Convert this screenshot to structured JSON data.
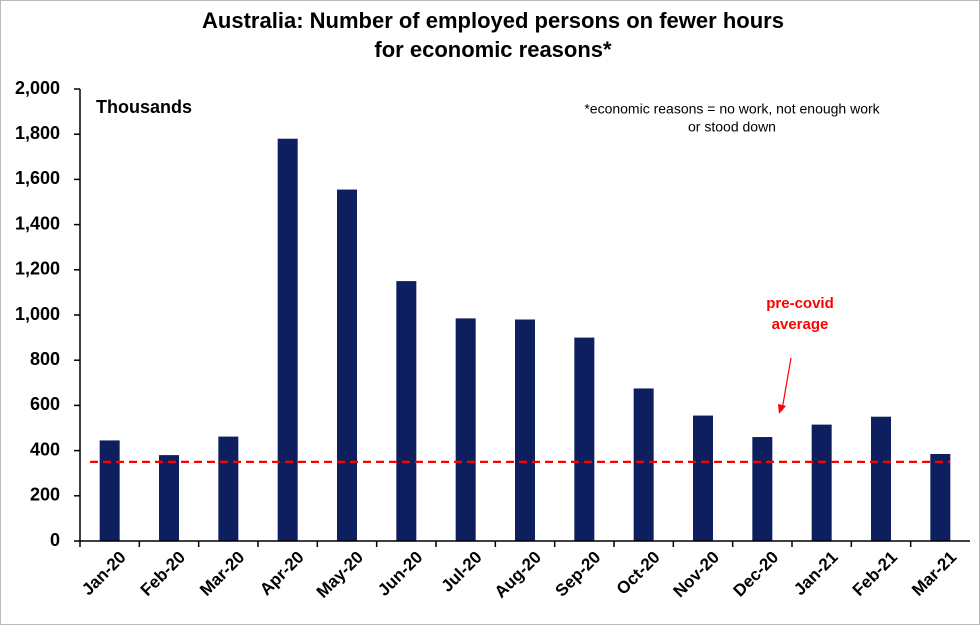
{
  "chart_data": {
    "type": "bar",
    "title": [
      "Australia: Number of employed persons on fewer hours",
      "for economic reasons*"
    ],
    "unit_label": "Thousands",
    "note": [
      "*economic reasons = no work, not enough work",
      "or stood down"
    ],
    "categories": [
      "Jan-20",
      "Feb-20",
      "Mar-20",
      "Apr-20",
      "May-20",
      "Jun-20",
      "Jul-20",
      "Aug-20",
      "Sep-20",
      "Oct-20",
      "Nov-20",
      "Dec-20",
      "Jan-21",
      "Feb-21",
      "Mar-21"
    ],
    "values": [
      445,
      380,
      462,
      1780,
      1555,
      1150,
      985,
      980,
      900,
      675,
      555,
      460,
      515,
      550,
      385
    ],
    "color": "#0d1f5e",
    "ylim": [
      0,
      2000
    ],
    "yticks": [
      0,
      200,
      400,
      600,
      800,
      {
        "value": 1000,
        "label": "1,000"
      },
      {
        "value": 1200,
        "label": "1,200"
      },
      {
        "value": 1400,
        "label": "1,400"
      },
      {
        "value": 1600,
        "label": "1,600"
      },
      {
        "value": 1800,
        "label": "1,800"
      },
      {
        "value": 2000,
        "label": "2,000"
      }
    ],
    "grid": false,
    "reference_line": {
      "value": 350,
      "color": "#ff0000",
      "label": [
        "pre-covid",
        "average"
      ]
    }
  }
}
